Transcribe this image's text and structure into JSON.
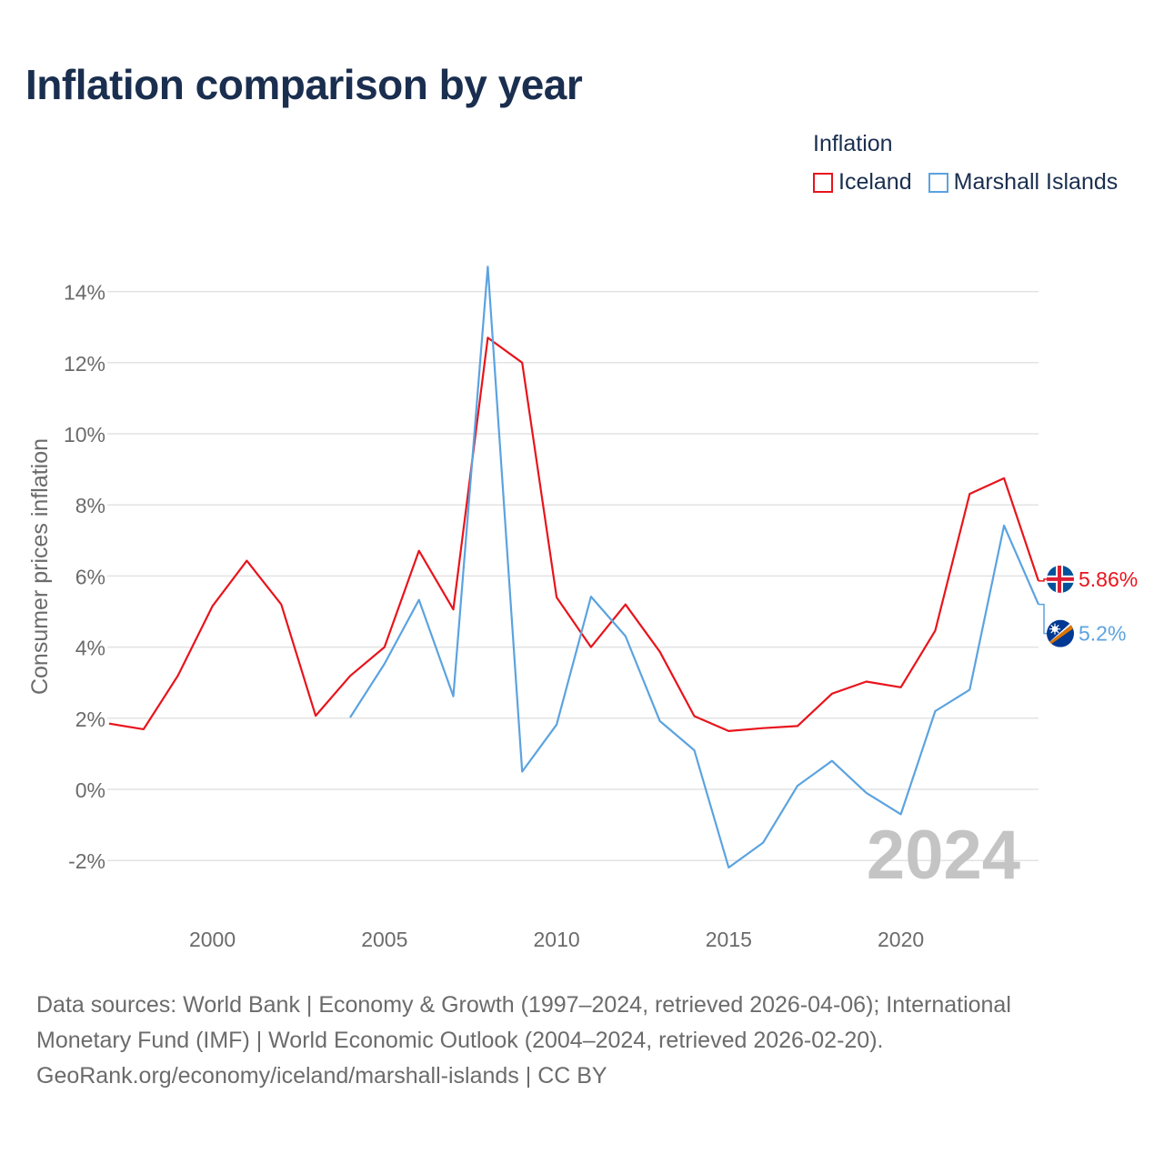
{
  "title": "Inflation comparison by year",
  "legend": {
    "title": "Inflation",
    "items": [
      {
        "name": "Iceland",
        "color": "#e8141c"
      },
      {
        "name": "Marshall Islands",
        "color": "#5ba3e0"
      }
    ]
  },
  "chart_data": {
    "type": "line",
    "title": "Inflation comparison by year",
    "xlabel": "",
    "ylabel": "Consumer prices inflation",
    "xlim": [
      1997,
      2024
    ],
    "ylim": [
      -3,
      15
    ],
    "x_ticks": [
      2000,
      2005,
      2010,
      2015,
      2020
    ],
    "y_ticks": [
      -2,
      0,
      2,
      4,
      6,
      8,
      10,
      12,
      14
    ],
    "y_tick_labels": [
      "-2%",
      "0%",
      "2%",
      "4%",
      "6%",
      "8%",
      "10%",
      "12%",
      "14%"
    ],
    "grid": true,
    "watermark_year": "2024",
    "series": [
      {
        "name": "Iceland",
        "color": "#e8141c",
        "end_label": "5.86%",
        "end_value": 5.86,
        "flag": "iceland-flag",
        "x": [
          1997,
          1998,
          1999,
          2000,
          2001,
          2002,
          2003,
          2004,
          2005,
          2006,
          2007,
          2008,
          2009,
          2010,
          2011,
          2012,
          2013,
          2014,
          2015,
          2016,
          2017,
          2018,
          2019,
          2020,
          2021,
          2022,
          2023,
          2024
        ],
        "values": [
          1.85,
          1.69,
          3.2,
          5.15,
          6.43,
          5.2,
          2.07,
          3.19,
          4.0,
          6.71,
          5.06,
          12.7,
          12.0,
          5.4,
          4.0,
          5.2,
          3.87,
          2.06,
          1.64,
          1.72,
          1.78,
          2.69,
          3.03,
          2.87,
          4.46,
          8.31,
          8.75,
          5.86
        ]
      },
      {
        "name": "Marshall Islands",
        "color": "#5ba3e0",
        "end_label": "5.2%",
        "end_value": 5.2,
        "flag": "marshall-islands-flag",
        "x": [
          2004,
          2005,
          2006,
          2007,
          2008,
          2009,
          2010,
          2011,
          2012,
          2013,
          2014,
          2015,
          2016,
          2017,
          2018,
          2019,
          2020,
          2021,
          2022,
          2023,
          2024
        ],
        "values": [
          2.02,
          3.53,
          5.33,
          2.62,
          14.7,
          0.5,
          1.82,
          5.42,
          4.31,
          1.92,
          1.1,
          -2.2,
          -1.5,
          0.1,
          0.8,
          -0.1,
          -0.7,
          2.2,
          2.8,
          7.42,
          5.2
        ]
      }
    ]
  },
  "footer": {
    "line1": "Data sources: World Bank | Economy & Growth (1997–2024, retrieved 2026-04-06); International",
    "line2": "Monetary Fund (IMF) | World Economic Outlook (2004–2024, retrieved 2026-02-20).",
    "line3": "GeoRank.org/economy/iceland/marshall-islands | CC BY"
  }
}
